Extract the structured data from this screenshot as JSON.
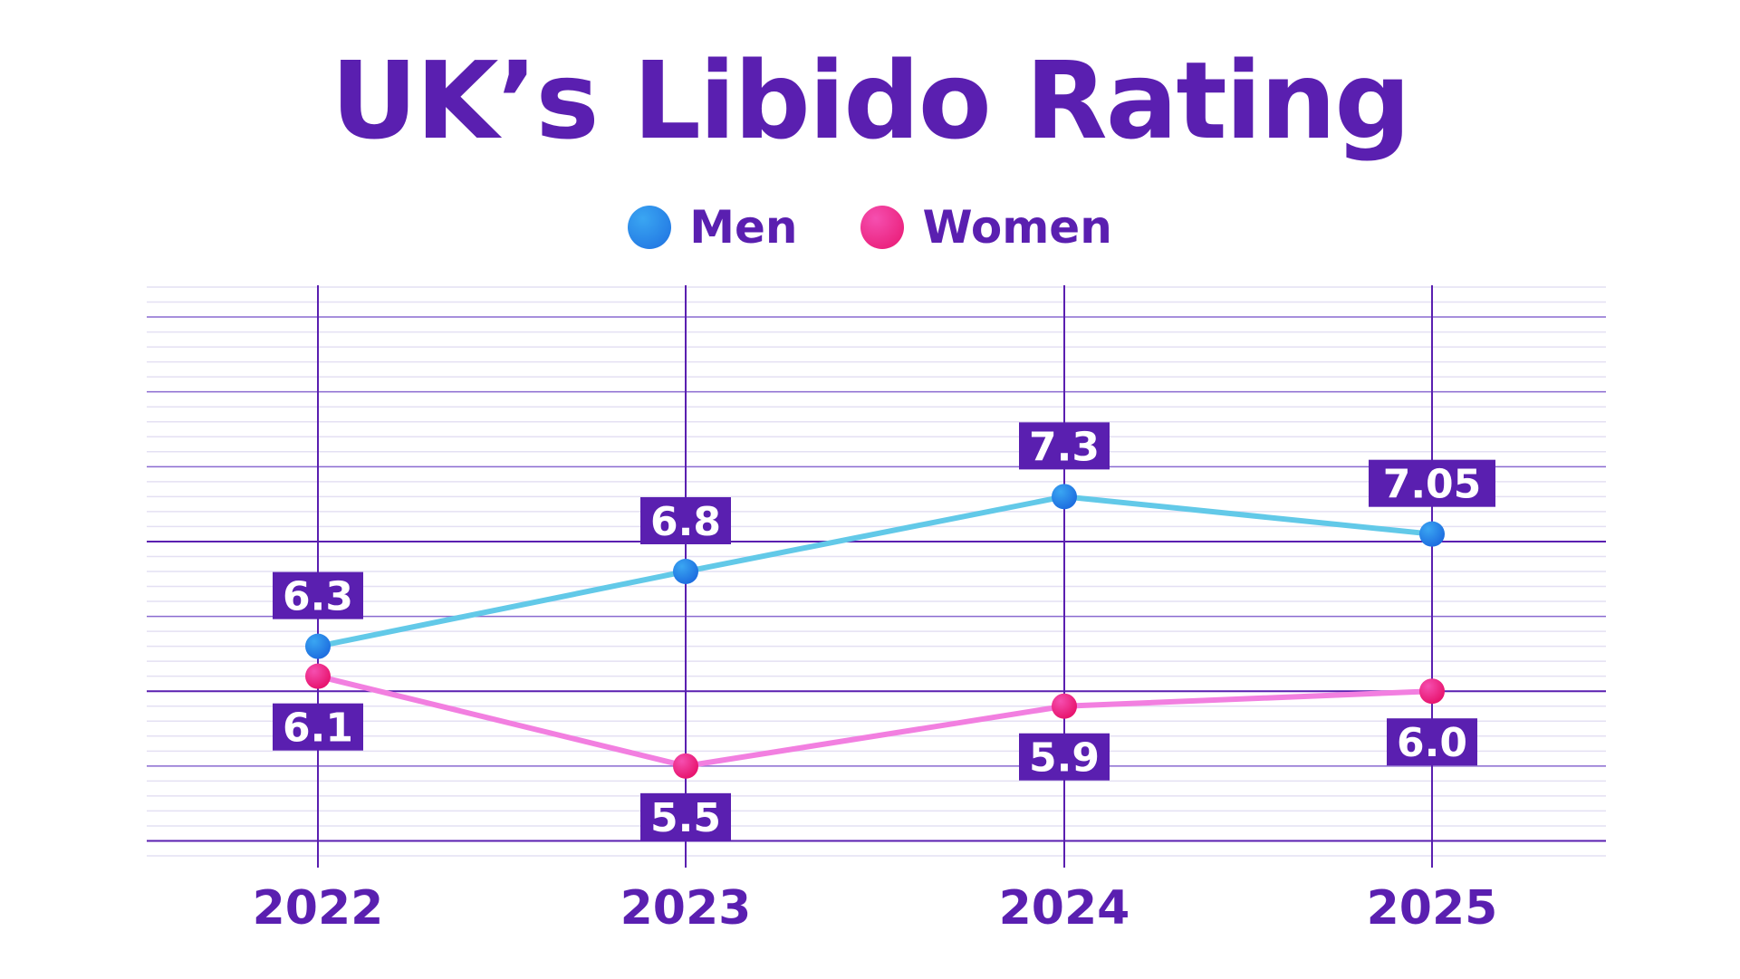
{
  "chart_data": {
    "type": "line",
    "title": "UK’s Libido Rating",
    "categories": [
      "2022",
      "2023",
      "2024",
      "2025"
    ],
    "series": [
      {
        "name": "Men",
        "values": [
          6.3,
          6.8,
          7.3,
          7.05
        ],
        "labels": [
          "6.3",
          "6.8",
          "7.3",
          "7.05"
        ],
        "color": "#62c9e8"
      },
      {
        "name": "Women",
        "values": [
          6.1,
          5.5,
          5.9,
          6.0
        ],
        "labels": [
          "6.1",
          "5.5",
          "5.9",
          "6.0"
        ],
        "color": "#f27fe0"
      }
    ],
    "ylim": [
      4.9,
      8.7
    ],
    "grid": true,
    "legend": "top-center"
  },
  "colors": {
    "accent": "#5a1fb0",
    "men_marker": "#1e84e8",
    "women_marker": "#ee2a8f",
    "minor_grid": "#e4e0f3"
  }
}
